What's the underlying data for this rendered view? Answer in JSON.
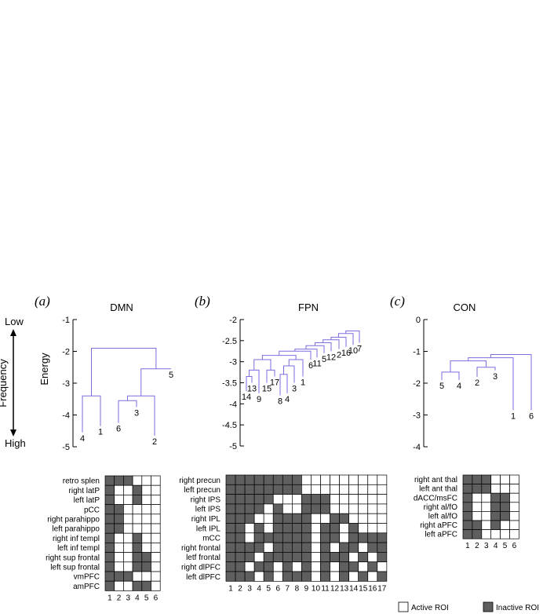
{
  "left_axis": {
    "low": "Low",
    "high": "High",
    "frequency": "Frequency",
    "energy": "Energy"
  },
  "panels": [
    {
      "letter": "(a)",
      "title": "DMN",
      "y_ticks": [
        "-1",
        "-2",
        "-3",
        "-4",
        "-5"
      ],
      "leaves": [
        {
          "label": "4",
          "energy": -4.55
        },
        {
          "label": "1",
          "energy": -4.35
        },
        {
          "label": "6",
          "energy": -4.25
        },
        {
          "label": "3",
          "energy": -3.75
        },
        {
          "label": "2",
          "energy": -4.65
        },
        {
          "label": "5",
          "energy": -2.55
        }
      ],
      "merges": [
        {
          "a": 0,
          "b": 1,
          "height": -3.4
        },
        {
          "a": 2,
          "b": 3,
          "height": -3.55
        },
        {
          "a": 7,
          "b": 4,
          "height": -3.4
        },
        {
          "a": 8,
          "b": 5,
          "height": -2.55
        },
        {
          "a": 6,
          "b": 9,
          "height": -1.9
        }
      ],
      "rois": [
        "retro splen",
        "right latP",
        "left latP",
        "pCC",
        "right parahippo",
        "left parahippo",
        "right inf templ",
        "left inf templ",
        "right sup frontal",
        "left sup frontal",
        "vmPFC",
        "amPFC"
      ],
      "columns": [
        "1",
        "2",
        "3",
        "4",
        "5",
        "6"
      ],
      "grid": [
        "111000",
        "100100",
        "100100",
        "110000",
        "110000",
        "110000",
        "100100",
        "100100",
        "100110",
        "100110",
        "111000",
        "100110"
      ]
    },
    {
      "letter": "(b)",
      "title": "FPN",
      "y_ticks": [
        "-2",
        "-2.5",
        "-3",
        "-3.5",
        "-4",
        "-4.5",
        "-5"
      ],
      "leaves": [
        {
          "label": "14",
          "energy": -3.7
        },
        {
          "label": "13",
          "energy": -3.5
        },
        {
          "label": "9",
          "energy": -3.75
        },
        {
          "label": "15",
          "energy": -3.5
        },
        {
          "label": "17",
          "energy": -3.35
        },
        {
          "label": "8",
          "energy": -3.8
        },
        {
          "label": "4",
          "energy": -3.75
        },
        {
          "label": "3",
          "energy": -3.5
        },
        {
          "label": "1",
          "energy": -3.35
        },
        {
          "label": "6",
          "energy": -2.95
        },
        {
          "label": "11",
          "energy": -2.9
        },
        {
          "label": "5",
          "energy": -2.8
        },
        {
          "label": "12",
          "energy": -2.75
        },
        {
          "label": "2",
          "energy": -2.7
        },
        {
          "label": "16",
          "energy": -2.65
        },
        {
          "label": "10",
          "energy": -2.6
        },
        {
          "label": "7",
          "energy": -2.55
        }
      ],
      "merges": [
        {
          "a": 0,
          "b": 1,
          "height": -3.35
        },
        {
          "a": 17,
          "b": 2,
          "height": -3.2
        },
        {
          "a": 3,
          "b": 4,
          "height": -3.2
        },
        {
          "a": 18,
          "b": 19,
          "height": -2.95
        },
        {
          "a": 5,
          "b": 6,
          "height": -3.3
        },
        {
          "a": 21,
          "b": 7,
          "height": -3.1
        },
        {
          "a": 22,
          "b": 8,
          "height": -2.95
        },
        {
          "a": 20,
          "b": 23,
          "height": -2.85
        },
        {
          "a": 24,
          "b": 9,
          "height": -2.75
        },
        {
          "a": 25,
          "b": 10,
          "height": -2.7
        },
        {
          "a": 26,
          "b": 11,
          "height": -2.62
        },
        {
          "a": 27,
          "b": 12,
          "height": -2.55
        },
        {
          "a": 28,
          "b": 13,
          "height": -2.48
        },
        {
          "a": 29,
          "b": 14,
          "height": -2.42
        },
        {
          "a": 30,
          "b": 15,
          "height": -2.33
        },
        {
          "a": 31,
          "b": 16,
          "height": -2.27
        }
      ],
      "rois": [
        "right precun",
        "left precun",
        "right IPS",
        "left IPS",
        "right IPL",
        "left IPL",
        "mCC",
        "right frontal",
        "letf frontal",
        "right dlPFC",
        "left dlPFC"
      ],
      "columns": [
        "1",
        "2",
        "3",
        "4",
        "5",
        "6",
        "7",
        "8",
        "9",
        "10",
        "11",
        "12",
        "13",
        "14",
        "15",
        "16",
        "17"
      ],
      "grid": [
        "11111111000000000",
        "11111111000000000",
        "11111000111000000",
        "11110100111000000",
        "11100111100110000",
        "11010111101101000",
        "11011111101101111",
        "11110111101011011",
        "11101111101110101",
        "11011010101011010",
        "11101011101010101"
      ]
    },
    {
      "letter": "(c)",
      "title": "CON",
      "y_ticks": [
        "0",
        "-1",
        "-2",
        "-3",
        "-4"
      ],
      "leaves": [
        {
          "label": "5",
          "energy": -1.9
        },
        {
          "label": "4",
          "energy": -1.9
        },
        {
          "label": "2",
          "energy": -1.8
        },
        {
          "label": "3",
          "energy": -1.6
        },
        {
          "label": "1",
          "energy": -2.85
        },
        {
          "label": "6",
          "energy": -2.85
        }
      ],
      "merges": [
        {
          "a": 0,
          "b": 1,
          "height": -1.65
        },
        {
          "a": 2,
          "b": 3,
          "height": -1.5
        },
        {
          "a": 6,
          "b": 7,
          "height": -1.3
        },
        {
          "a": 8,
          "b": 4,
          "height": -1.2
        },
        {
          "a": 9,
          "b": 5,
          "height": -1.1
        }
      ],
      "rois": [
        "right ant thal",
        "left ant thal",
        "dACC/msFC",
        "right al/fO",
        "left al/fO",
        "right aPFC",
        "left aPFC"
      ],
      "columns": [
        "1",
        "2",
        "3",
        "4",
        "5",
        "6"
      ],
      "grid": [
        "111000",
        "111000",
        "100110",
        "100110",
        "100110",
        "110100",
        "110000"
      ]
    }
  ],
  "legend": {
    "active": "Active ROI",
    "inactive": "Inactive ROI"
  },
  "colors": {
    "inactive": "#5f5f5f",
    "active": "#ffffff",
    "dendrogram": "#7a6ee0"
  }
}
